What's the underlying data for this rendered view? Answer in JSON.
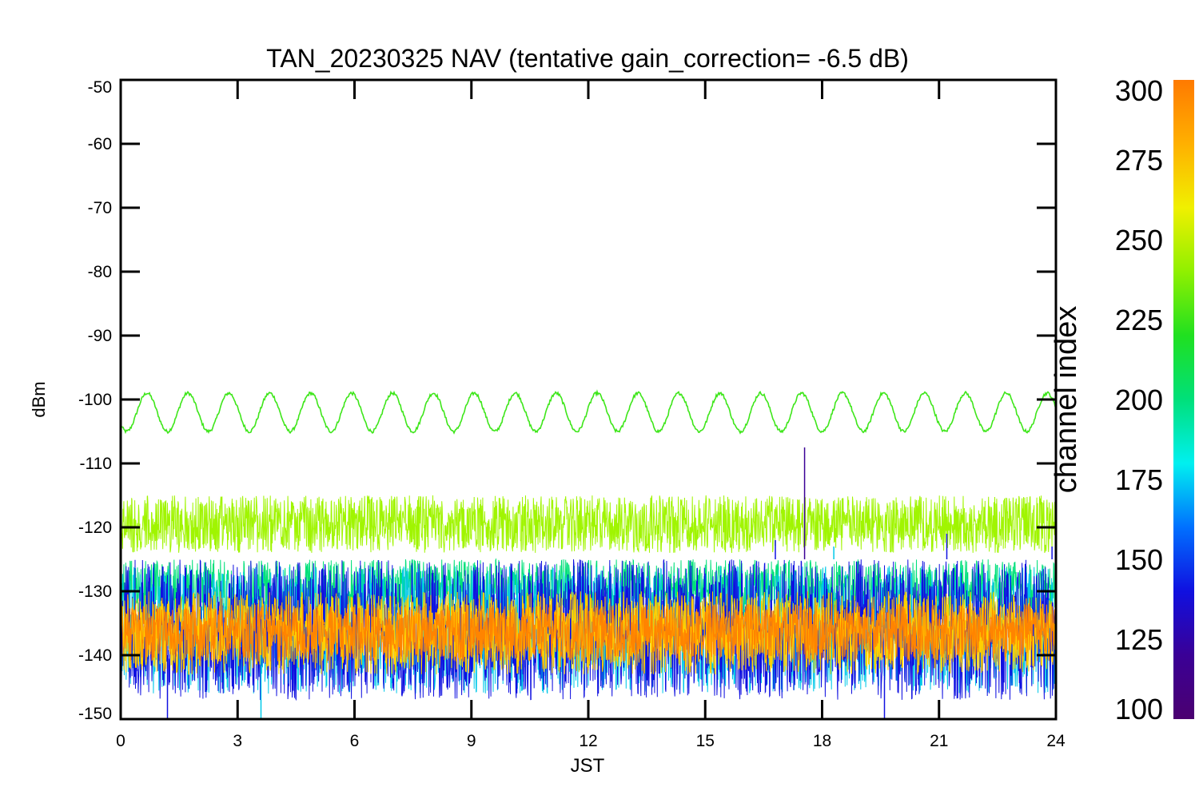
{
  "chart_data": {
    "type": "line",
    "title": "TAN_20230325 NAV (tentative gain_correction= -6.5 dB)",
    "xlabel": "JST",
    "ylabel": "dBm",
    "xlim": [
      0,
      24
    ],
    "ylim": [
      -150,
      -50
    ],
    "x_ticks": [
      "0",
      "3",
      "6",
      "9",
      "12",
      "15",
      "18",
      "21",
      "24"
    ],
    "y_ticks": [
      "-50",
      "-60",
      "-70",
      "-80",
      "-90",
      "-100",
      "-110",
      "-120",
      "-130",
      "-140",
      "-150"
    ],
    "colorbar": {
      "label": "channel index",
      "range": [
        100,
        300
      ],
      "ticks": [
        "300",
        "275",
        "250",
        "225",
        "200",
        "175",
        "150",
        "125",
        "100"
      ]
    },
    "series": [
      {
        "channel": 240,
        "color": "#3ee61a",
        "pattern": "sinusoid",
        "center": -102,
        "amplitude": 3,
        "period_hours": 1.05
      },
      {
        "channel": 260,
        "color": "#a0f500",
        "pattern": "noise_band",
        "center": -119.5,
        "low": -124,
        "high": -115
      },
      {
        "channel": 210,
        "color": "#00e07a",
        "pattern": "noise_band",
        "center": -130,
        "low": -134,
        "high": -125
      },
      {
        "channel": 175,
        "color": "#00c8e8",
        "pattern": "noise_band",
        "center": -136,
        "low": -146,
        "high": -126
      },
      {
        "channel": 130,
        "color": "#1010e0",
        "pattern": "noise_band",
        "center": -136,
        "low": -147,
        "high": -125
      },
      {
        "channel": 270,
        "color": "#ffd000",
        "pattern": "noise_band",
        "center": -136,
        "low": -143,
        "high": -130
      },
      {
        "channel": 290,
        "color": "#ff8400",
        "pattern": "noise_band",
        "center": -136,
        "low": -141,
        "high": -132
      }
    ],
    "spikes": [
      {
        "x": 17.55,
        "y": -107.5,
        "color": "#3a0096"
      },
      {
        "x": 16.8,
        "y": -122,
        "color": "#1010e0"
      },
      {
        "x": 21.2,
        "y": -121,
        "color": "#1010e0"
      },
      {
        "x": 18.3,
        "y": -123,
        "color": "#00c8e8"
      },
      {
        "x": 23.9,
        "y": -123,
        "color": "#1010e0"
      },
      {
        "x": 1.2,
        "y": -150,
        "color": "#1010e0"
      },
      {
        "x": 3.6,
        "y": -150,
        "color": "#00c8e8"
      },
      {
        "x": 19.6,
        "y": -150,
        "color": "#1010e0"
      }
    ]
  }
}
